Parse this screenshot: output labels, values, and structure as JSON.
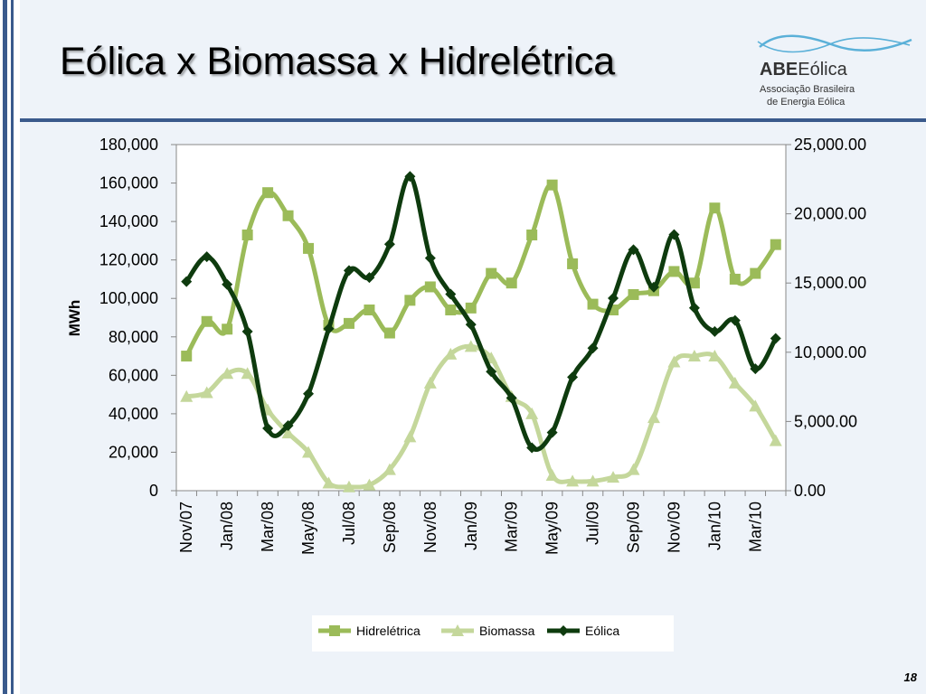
{
  "slide": {
    "title": "Eólica x Biomassa x Hidrelétrica",
    "page_number": "18"
  },
  "logo": {
    "abe": "ABE",
    "eolica": "Eólica",
    "line1": "Associação Brasileira",
    "line2": "de Energia Eólica"
  },
  "colors": {
    "hidreletrica": "#9bbb59",
    "biomassa": "#c4d79b",
    "eolica": "#0e3b0e",
    "frame": "#3a5a8c",
    "icon_swoosh": "#5ab0d8"
  },
  "chart_data": {
    "type": "line",
    "ylabel": "MWh",
    "grid": false,
    "legend_position": "bottom",
    "ylim_left": [
      0,
      180000
    ],
    "ylim_right": [
      0,
      25000
    ],
    "left_ticks": [
      "0",
      "20,000",
      "40,000",
      "60,000",
      "80,000",
      "100,000",
      "120,000",
      "140,000",
      "160,000",
      "180,000"
    ],
    "right_ticks": [
      "0.00",
      "5,000.00",
      "10,000.00",
      "15,000.00",
      "20,000.00",
      "25,000.00"
    ],
    "categories": [
      "Nov/07",
      "Dec/07",
      "Jan/08",
      "Feb/08",
      "Mar/08",
      "Apr/08",
      "May/08",
      "Jun/08",
      "Jul/08",
      "Aug/08",
      "Sep/08",
      "Oct/08",
      "Nov/08",
      "Dec/08",
      "Jan/09",
      "Feb/09",
      "Mar/09",
      "Apr/09",
      "May/09",
      "Jun/09",
      "Jul/09",
      "Aug/09",
      "Sep/09",
      "Oct/09",
      "Nov/09",
      "Dec/09",
      "Jan/10",
      "Feb/10",
      "Mar/10",
      "Apr/10"
    ],
    "x_tick_labels": [
      "Nov/07",
      "Jan/08",
      "Mar/08",
      "May/08",
      "Jul/08",
      "Sep/08",
      "Nov/08",
      "Jan/09",
      "Mar/09",
      "May/09",
      "Jul/09",
      "Sep/09",
      "Nov/09",
      "Jan/10",
      "Mar/10"
    ],
    "series": [
      {
        "name": "Hidrelétrica",
        "axis": "left",
        "marker": "square",
        "color": "#9bbb59",
        "values": [
          70000,
          88000,
          84000,
          133000,
          155000,
          143000,
          126000,
          86000,
          87000,
          94000,
          82000,
          99000,
          106000,
          94000,
          95000,
          113000,
          108000,
          133000,
          159000,
          118000,
          97000,
          94000,
          102000,
          104000,
          114000,
          108000,
          147000,
          110000,
          113000,
          128000
        ]
      },
      {
        "name": "Biomassa",
        "axis": "left",
        "marker": "triangle",
        "color": "#c4d79b",
        "values": [
          49000,
          51000,
          61000,
          61000,
          42000,
          30000,
          20000,
          4000,
          2000,
          3000,
          11000,
          28000,
          56000,
          71000,
          75000,
          69000,
          49000,
          40000,
          8000,
          5000,
          5000,
          7000,
          11000,
          38000,
          67000,
          70000,
          70000,
          56000,
          44000,
          26000
        ]
      },
      {
        "name": "Eólica",
        "axis": "right",
        "marker": "diamond",
        "color": "#0e3b0e",
        "values": [
          15100,
          16900,
          14900,
          11500,
          4500,
          4700,
          7000,
          11700,
          15900,
          15400,
          17800,
          22700,
          16800,
          14200,
          12000,
          8600,
          6700,
          3100,
          4200,
          8200,
          10300,
          13900,
          17400,
          14700,
          18500,
          13200,
          11500,
          12300,
          8800,
          11000
        ]
      }
    ]
  }
}
